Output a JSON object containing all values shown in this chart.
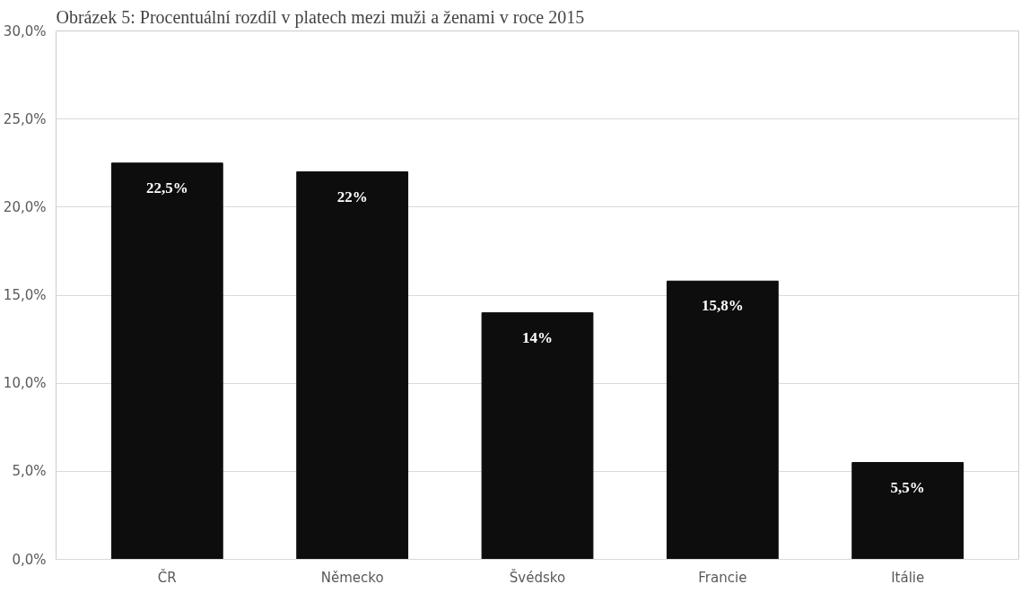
{
  "chart_data": {
    "type": "bar",
    "title": "Obrázek 5: Procentuální rozdíl v platech mezi muži a ženami v roce 2015",
    "categories": [
      "ČR",
      "Německo",
      "Švédsko",
      "Francie",
      "Itálie"
    ],
    "values": [
      22.5,
      22,
      14,
      15.8,
      5.5
    ],
    "value_labels": [
      "22,5%",
      "22%",
      "14%",
      "15,8%",
      "5,5%"
    ],
    "color": "#0d0d0d",
    "ylim": [
      0,
      30
    ],
    "yticks": [
      {
        "value": 0,
        "label": "0,0%"
      },
      {
        "value": 5,
        "label": "5,0%"
      },
      {
        "value": 10,
        "label": "10,0%"
      },
      {
        "value": 15,
        "label": "15,0%"
      },
      {
        "value": 20,
        "label": "20,0%"
      },
      {
        "value": 25,
        "label": "25,0%"
      },
      {
        "value": 30,
        "label": "30,0%"
      }
    ],
    "grid": "y"
  }
}
